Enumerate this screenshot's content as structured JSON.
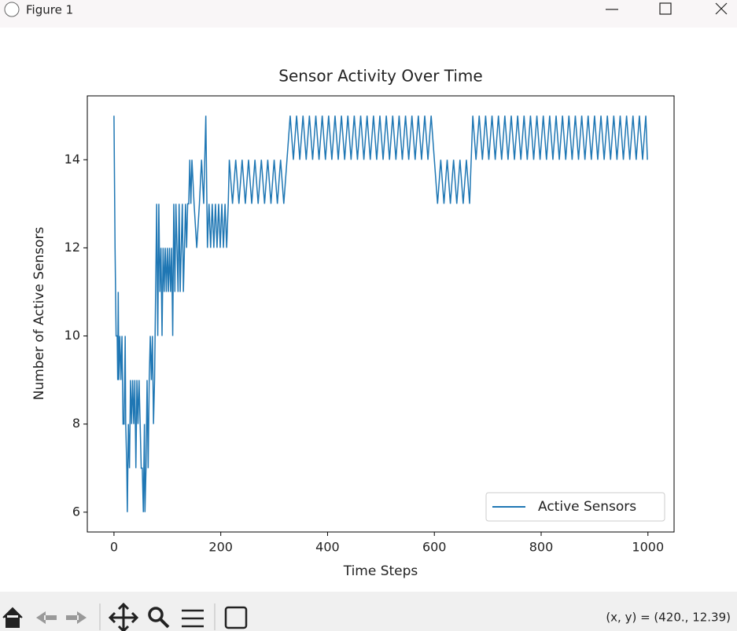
{
  "window": {
    "title": "Figure 1"
  },
  "toolbar": {
    "coords": "(x, y) = (420., 12.39)"
  },
  "chart_data": {
    "type": "line",
    "title": "Sensor Activity Over Time",
    "x_label": "Time Steps",
    "y_label": "Number of Active Sensors",
    "xlim": [
      -49.95,
      1048.95
    ],
    "ylim": [
      5.55,
      15.45
    ],
    "xticks": [
      0,
      200,
      400,
      600,
      800,
      1000
    ],
    "yticks": [
      6,
      8,
      10,
      12,
      14
    ],
    "legend": "lower right",
    "x": [
      0,
      2,
      4,
      6,
      7,
      8,
      9,
      11,
      13,
      15,
      17,
      19,
      21,
      22,
      24,
      25,
      27,
      29,
      31,
      33,
      35,
      37,
      39,
      41,
      43,
      45,
      47,
      49,
      51,
      53,
      55,
      57,
      58,
      60,
      62,
      64,
      66,
      68,
      70,
      72,
      74,
      76,
      78,
      80,
      82,
      84,
      86,
      88,
      90,
      92,
      94,
      96,
      98,
      100,
      102,
      104,
      106,
      108,
      110,
      112,
      114,
      116,
      118,
      120,
      122,
      124,
      126,
      128,
      130,
      132,
      134,
      136,
      138,
      140,
      142,
      144,
      146,
      150,
      155,
      160,
      164,
      168,
      172,
      175,
      178,
      181,
      184,
      187,
      190,
      193,
      196,
      199,
      202,
      205,
      208,
      211,
      214,
      216,
      222,
      228,
      234,
      240,
      246,
      252,
      258,
      264,
      270,
      276,
      282,
      288,
      294,
      300,
      306,
      312,
      318,
      324,
      330,
      336,
      342,
      348,
      354,
      360,
      366,
      372,
      378,
      384,
      390,
      396,
      402,
      408,
      414,
      420,
      426,
      432,
      438,
      444,
      450,
      456,
      462,
      468,
      474,
      480,
      486,
      492,
      498,
      504,
      510,
      516,
      522,
      528,
      534,
      540,
      546,
      552,
      558,
      564,
      570,
      576,
      582,
      588,
      594,
      600,
      606,
      612,
      618,
      624,
      630,
      636,
      642,
      648,
      654,
      660,
      666,
      672,
      678,
      684,
      690,
      696,
      702,
      708,
      714,
      720,
      726,
      732,
      738,
      744,
      750,
      756,
      762,
      768,
      774,
      780,
      786,
      792,
      798,
      804,
      810,
      816,
      822,
      828,
      834,
      840,
      846,
      852,
      858,
      864,
      870,
      876,
      882,
      888,
      894,
      900,
      906,
      912,
      918,
      924,
      930,
      936,
      942,
      948,
      954,
      960,
      966,
      972,
      978,
      984,
      990,
      996,
      999
    ],
    "series": [
      {
        "name": "Active Sensors",
        "color": "#1f77b4",
        "values": [
          15,
          12,
          10,
          10,
          9,
          11,
          9,
          10,
          9,
          10,
          8,
          8,
          10,
          8,
          7,
          6,
          8,
          7,
          9,
          8,
          9,
          8,
          9,
          7,
          9,
          8,
          9,
          8,
          7,
          7,
          6,
          8,
          6,
          7,
          9,
          7,
          9,
          10,
          9,
          10,
          8,
          9,
          11,
          13,
          10,
          13,
          11,
          12,
          10,
          12,
          11,
          12,
          11,
          12,
          11,
          12,
          11,
          12,
          10,
          13,
          11,
          13,
          12,
          11,
          13,
          11,
          12,
          13,
          11,
          12,
          13,
          12,
          13,
          13,
          14,
          13,
          14,
          13,
          12,
          13,
          14,
          13,
          15,
          12,
          13,
          12,
          13,
          12,
          13,
          12,
          13,
          12,
          13,
          12,
          13,
          12,
          13,
          14,
          13,
          14,
          13,
          14,
          13,
          14,
          13,
          14,
          13,
          14,
          13,
          14,
          13,
          14,
          13,
          14,
          13,
          14,
          15,
          14,
          15,
          14,
          15,
          14,
          15,
          14,
          15,
          14,
          15,
          14,
          15,
          14,
          15,
          14,
          15,
          14,
          15,
          14,
          15,
          14,
          15,
          14,
          15,
          14,
          15,
          14,
          15,
          14,
          15,
          14,
          15,
          14,
          15,
          14,
          15,
          14,
          15,
          14,
          15,
          14,
          15,
          14,
          15,
          14,
          13,
          14,
          13,
          14,
          13,
          14,
          13,
          14,
          13,
          14,
          13,
          15,
          14,
          15,
          14,
          15,
          14,
          15,
          14,
          15,
          14,
          15,
          14,
          15,
          14,
          15,
          14,
          15,
          14,
          15,
          14,
          15,
          14,
          15,
          14,
          15,
          14,
          15,
          14,
          15,
          14,
          15,
          14,
          15,
          14,
          15,
          14,
          15,
          14,
          15,
          14,
          15,
          14,
          15,
          14,
          15,
          14,
          15,
          14,
          15,
          14,
          15,
          14,
          15,
          14,
          15,
          14
        ]
      }
    ]
  }
}
